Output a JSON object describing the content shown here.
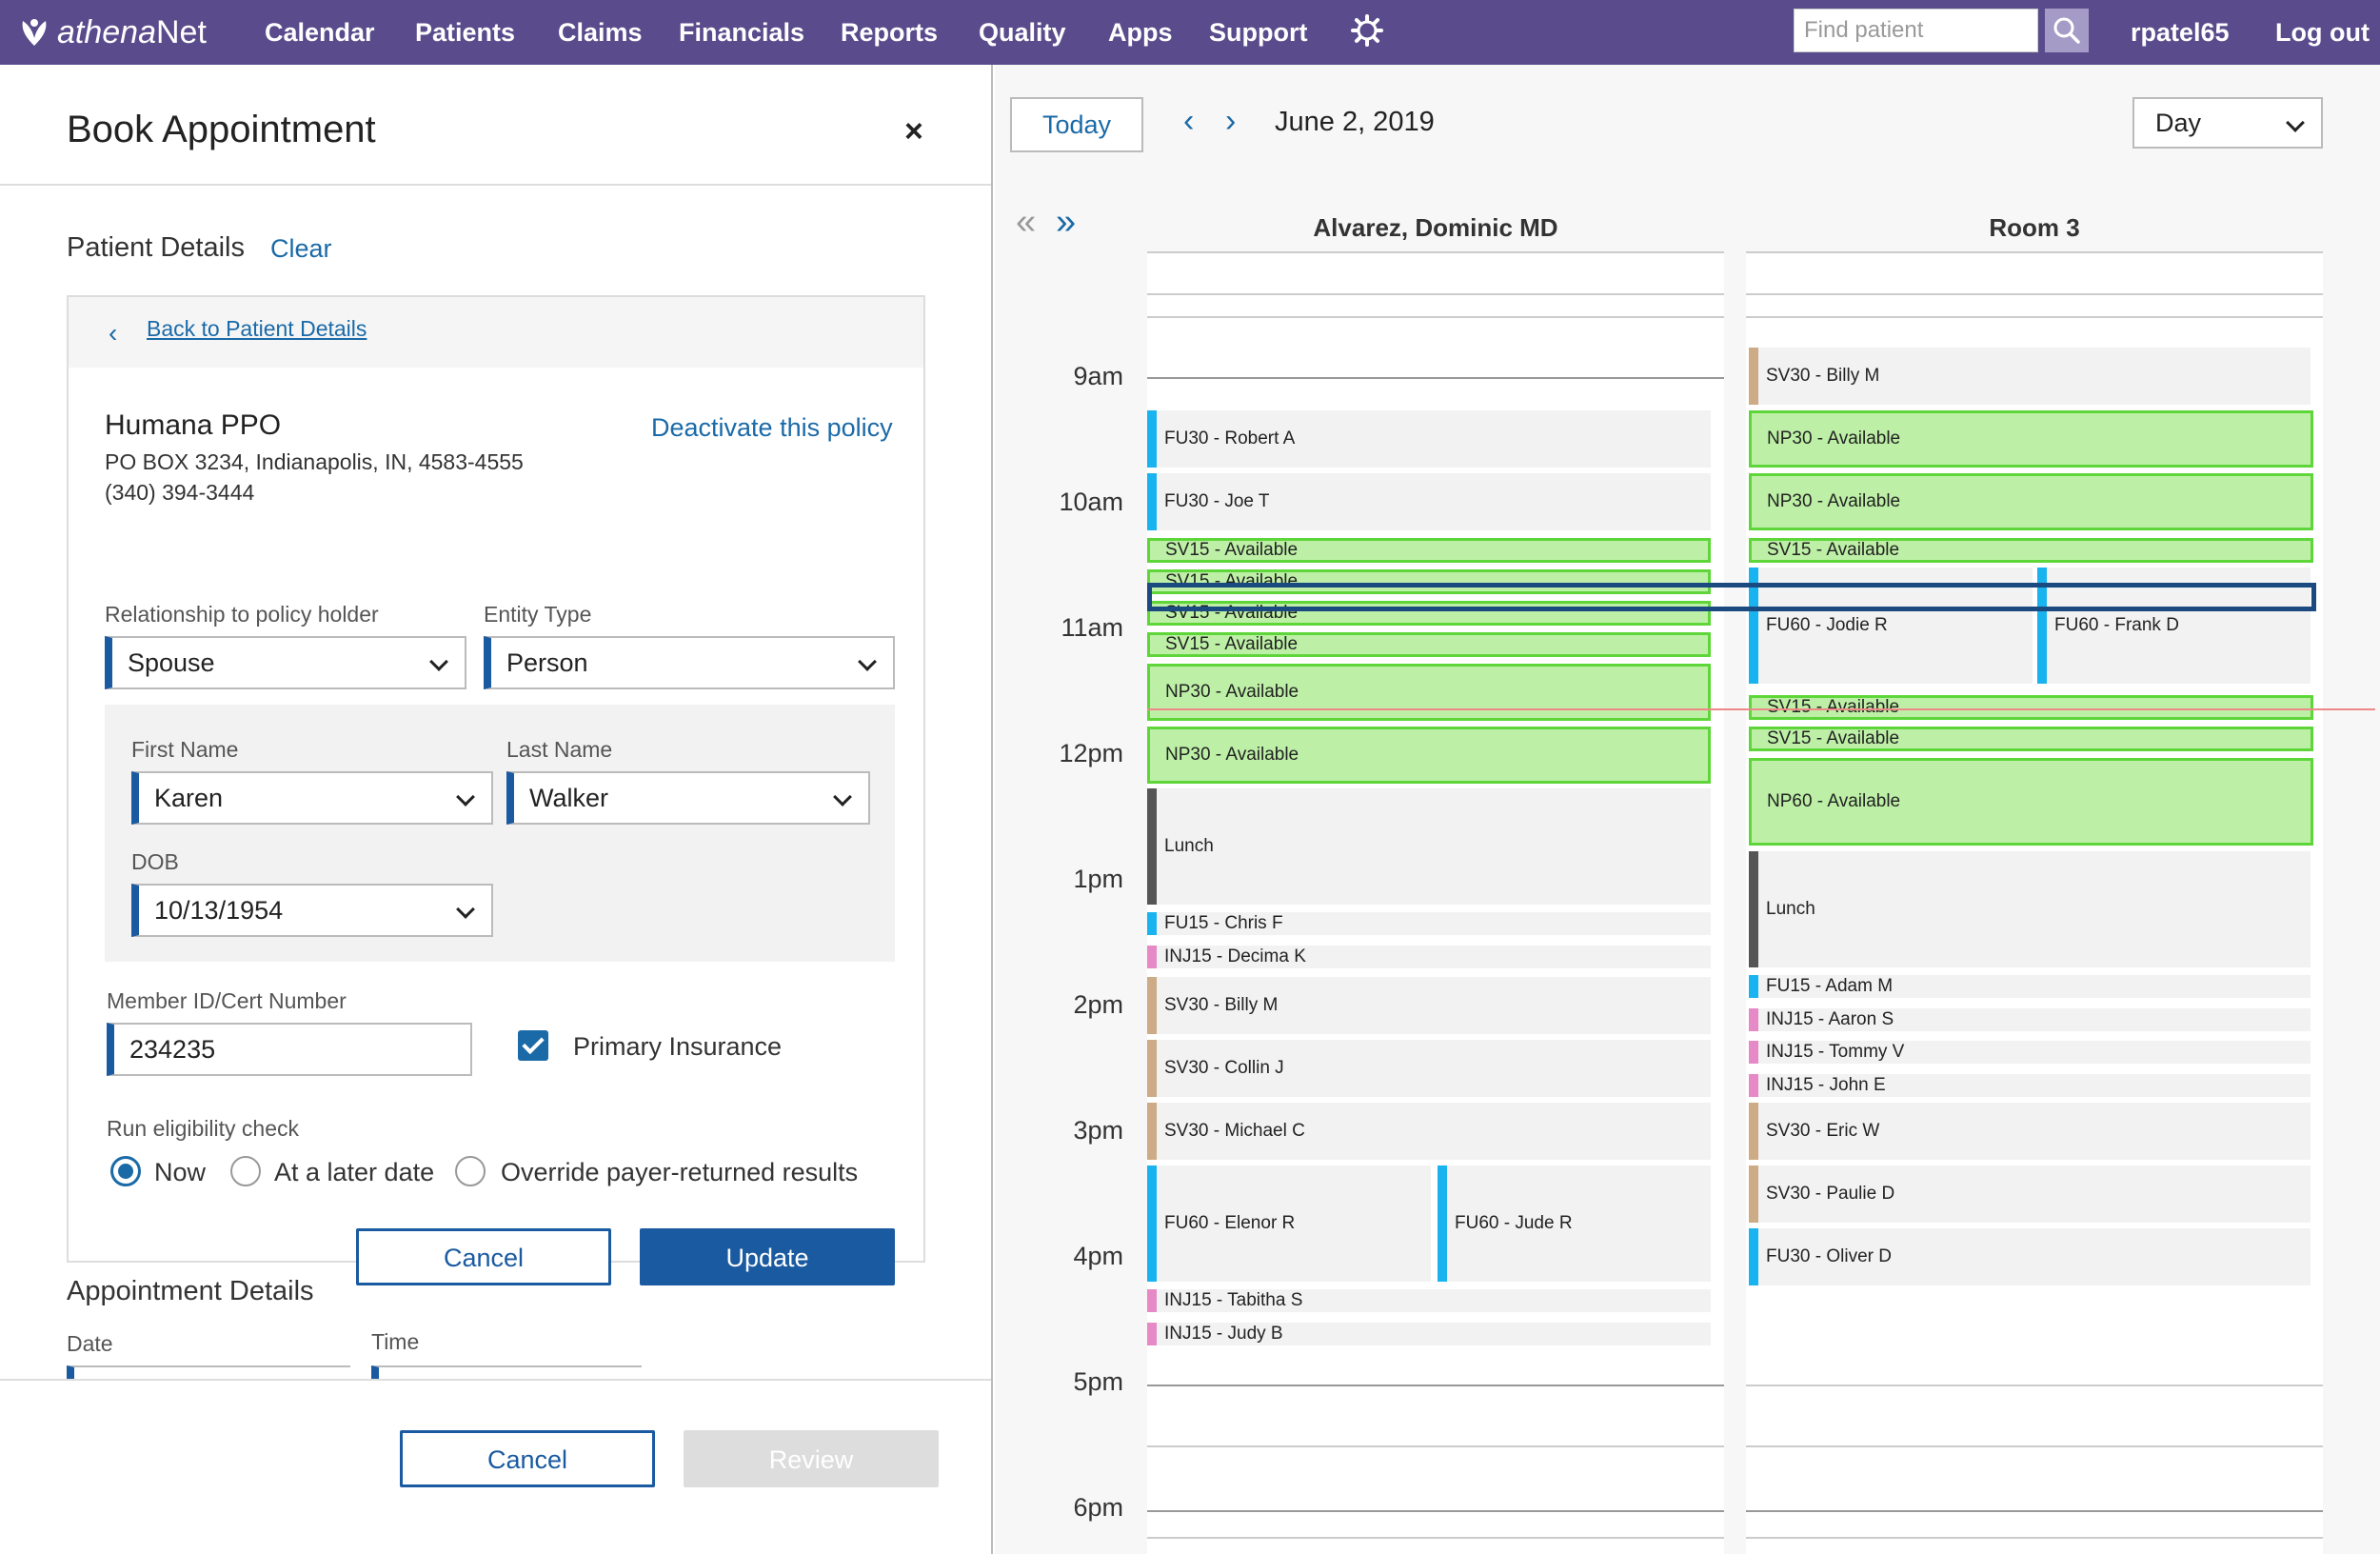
{
  "topnav": {
    "logo_prefix": "athena",
    "logo_suffix": "Net",
    "items": [
      "Calendar",
      "Patients",
      "Claims",
      "Financials",
      "Reports",
      "Quality",
      "Apps",
      "Support"
    ],
    "search_placeholder": "Find patient",
    "username": "rpatel65",
    "logout": "Log out"
  },
  "panel": {
    "title": "Book Appointment",
    "close": "×",
    "patient_details": "Patient Details",
    "clear": "Clear",
    "back_link": "Back to Patient Details",
    "insurance": {
      "name": "Humana PPO",
      "address": "PO BOX 3234, Indianapolis, IN, 4583-4555",
      "phone": "(340) 394-3444",
      "deactivate": "Deactivate this policy"
    },
    "relationship_label": "Relationship to policy holder",
    "relationship_value": "Spouse",
    "entity_label": "Entity Type",
    "entity_value": "Person",
    "first_name_label": "First Name",
    "first_name_value": "Karen",
    "last_name_label": "Last Name",
    "last_name_value": "Walker",
    "dob_label": "DOB",
    "dob_value": "10/13/1954",
    "member_label": "Member ID/Cert Number",
    "member_value": "234235",
    "primary_label": "Primary Insurance",
    "primary_checked": true,
    "eligibility_label": "Run eligibility check",
    "eligibility_options": [
      "Now",
      "At a later date",
      "Override payer-returned results"
    ],
    "eligibility_selected": "Now",
    "card_cancel": "Cancel",
    "card_update": "Update",
    "appointment_details": "Appointment Details",
    "date_label": "Date",
    "time_label": "Time",
    "footer_cancel": "Cancel",
    "footer_review": "Review"
  },
  "calendar": {
    "today": "Today",
    "date": "June 2, 2019",
    "view": "Day",
    "hours": [
      "9am",
      "10am",
      "11am",
      "12pm",
      "1pm",
      "2pm",
      "3pm",
      "4pm",
      "5pm",
      "6pm"
    ],
    "columns": [
      {
        "name": "Alvarez, Dominic MD",
        "appointments": [
          {
            "label": "FU30 - Robert A",
            "type": "FU"
          },
          {
            "label": "FU30 - Joe T",
            "type": "FU"
          },
          {
            "label": "SV15 - Available",
            "type": "available"
          },
          {
            "label": "SV15 - Available",
            "type": "available"
          },
          {
            "label": "SV15 - Available",
            "type": "available"
          },
          {
            "label": "SV15 - Available",
            "type": "available"
          },
          {
            "label": "NP30 - Available",
            "type": "available"
          },
          {
            "label": "NP30 - Available",
            "type": "available"
          },
          {
            "label": "Lunch",
            "type": "lunch"
          },
          {
            "label": "FU15 - Chris F",
            "type": "FU"
          },
          {
            "label": "INJ15 - Decima K",
            "type": "INJ"
          },
          {
            "label": "SV30 - Billy M",
            "type": "SV"
          },
          {
            "label": "SV30 - Collin J",
            "type": "SV"
          },
          {
            "label": "SV30 - Michael C",
            "type": "SV"
          },
          {
            "label": "FU60 - Elenor R",
            "type": "FU"
          },
          {
            "label": "FU60 - Jude R",
            "type": "FU"
          },
          {
            "label": "INJ15 - Tabitha S",
            "type": "INJ"
          },
          {
            "label": "INJ15 - Judy B",
            "type": "INJ"
          }
        ]
      },
      {
        "name": "Room 3",
        "appointments": [
          {
            "label": "SV30 - Billy M",
            "type": "SV"
          },
          {
            "label": "NP30 - Available",
            "type": "available"
          },
          {
            "label": "NP30 - Available",
            "type": "available"
          },
          {
            "label": "SV15 - Available",
            "type": "available"
          },
          {
            "label": "FU60 - Jodie R",
            "type": "FU"
          },
          {
            "label": "FU60 - Frank D",
            "type": "FU"
          },
          {
            "label": "SV15 - Available",
            "type": "available"
          },
          {
            "label": "SV15 - Available",
            "type": "available"
          },
          {
            "label": "NP60 - Available",
            "type": "available"
          },
          {
            "label": "Lunch",
            "type": "lunch"
          },
          {
            "label": "FU15 - Adam M",
            "type": "FU"
          },
          {
            "label": "INJ15 - Aaron S",
            "type": "INJ"
          },
          {
            "label": "INJ15 - Tommy V",
            "type": "INJ"
          },
          {
            "label": "INJ15 - John E",
            "type": "INJ"
          },
          {
            "label": "SV30 - Eric W",
            "type": "SV"
          },
          {
            "label": "SV30 - Paulie D",
            "type": "SV"
          },
          {
            "label": "FU30 - Oliver D",
            "type": "FU"
          }
        ]
      }
    ]
  },
  "colors": {
    "nav_bg": "#5a4c8c",
    "accent": "#1a5aa0",
    "link": "#1a6aa8",
    "fu": "#19b3ef",
    "inj": "#e58ac6",
    "sv": "#cdab86",
    "lunch": "#555555",
    "available_fill": "#bdf0a6",
    "available_border": "#5ed63a"
  }
}
